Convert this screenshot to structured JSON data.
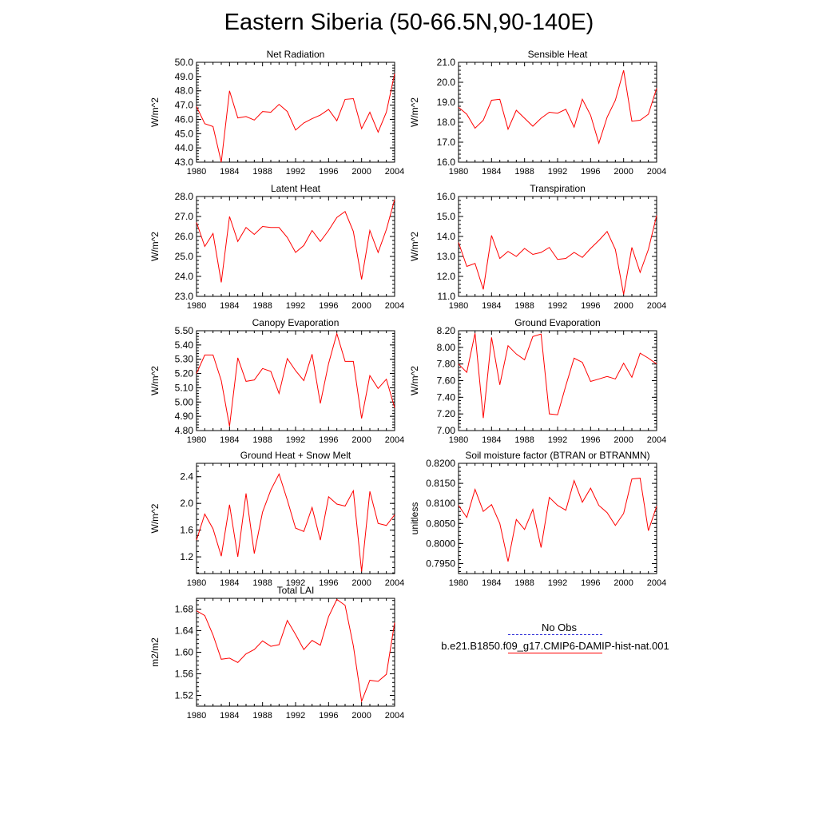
{
  "title": "Eastern Siberia (50-66.5N,90-140E)",
  "legend": {
    "obs_label": "No Obs",
    "model_label": "b.e21.B1850.f09_g17.CMIP6-DAMIP-hist-nat.001",
    "obs_color": "#2b2bd6",
    "model_color": "#ff0000"
  },
  "chart_data": [
    {
      "type": "line",
      "title": "Net Radiation",
      "ylabel": "W/m^2",
      "xlim": [
        1980,
        2004
      ],
      "ylim": [
        43.0,
        50.0
      ],
      "xticks": [
        1980,
        1984,
        1988,
        1992,
        1996,
        2000,
        2004
      ],
      "xtick_labels": [
        "1980",
        "1984",
        "1988",
        "1992",
        "1996",
        "2000",
        "2004"
      ],
      "yticks": [
        43.0,
        44.0,
        45.0,
        46.0,
        47.0,
        48.0,
        49.0,
        50.0
      ],
      "ytick_labels": [
        "43.0",
        "44.0",
        "45.0",
        "46.0",
        "47.0",
        "48.0",
        "49.0",
        "50.0"
      ],
      "x": [
        1980,
        1981,
        1982,
        1983,
        1984,
        1985,
        1986,
        1987,
        1988,
        1989,
        1990,
        1991,
        1992,
        1993,
        1994,
        1995,
        1996,
        1997,
        1998,
        1999,
        2000,
        2001,
        2002,
        2003,
        2004
      ],
      "series": [
        {
          "color": "#ff0000",
          "values": [
            46.9,
            45.7,
            45.5,
            43.0,
            48.0,
            46.1,
            46.2,
            45.95,
            46.55,
            46.5,
            47.05,
            46.55,
            45.25,
            45.75,
            46.05,
            46.3,
            46.7,
            45.9,
            47.4,
            47.45,
            45.35,
            46.5,
            45.1,
            46.5,
            49.2
          ]
        }
      ]
    },
    {
      "type": "line",
      "title": "Sensible Heat",
      "ylabel": "W/m^2",
      "xlim": [
        1980,
        2004
      ],
      "ylim": [
        16.0,
        21.0
      ],
      "xticks": [
        1980,
        1984,
        1988,
        1992,
        1996,
        2000,
        2004
      ],
      "xtick_labels": [
        "1980",
        "1984",
        "1988",
        "1992",
        "1996",
        "2000",
        "2004"
      ],
      "yticks": [
        16.0,
        17.0,
        18.0,
        19.0,
        20.0,
        21.0
      ],
      "ytick_labels": [
        "16.0",
        "17.0",
        "18.0",
        "19.0",
        "20.0",
        "21.0"
      ],
      "x": [
        1980,
        1981,
        1982,
        1983,
        1984,
        1985,
        1986,
        1987,
        1988,
        1989,
        1990,
        1991,
        1992,
        1993,
        1994,
        1995,
        1996,
        1997,
        1998,
        1999,
        2000,
        2001,
        2002,
        2003,
        2004
      ],
      "series": [
        {
          "color": "#ff0000",
          "values": [
            18.75,
            18.4,
            17.7,
            18.1,
            19.1,
            19.15,
            17.65,
            18.6,
            18.2,
            17.8,
            18.2,
            18.5,
            18.45,
            18.65,
            17.75,
            19.15,
            18.35,
            16.95,
            18.25,
            19.1,
            20.6,
            18.05,
            18.1,
            18.4,
            19.7
          ]
        }
      ]
    },
    {
      "type": "line",
      "title": "Latent Heat",
      "ylabel": "W/m^2",
      "xlim": [
        1980,
        2004
      ],
      "ylim": [
        23.0,
        28.0
      ],
      "xticks": [
        1980,
        1984,
        1988,
        1992,
        1996,
        2000,
        2004
      ],
      "xtick_labels": [
        "1980",
        "1984",
        "1988",
        "1992",
        "1996",
        "2000",
        "2004"
      ],
      "yticks": [
        23.0,
        24.0,
        25.0,
        26.0,
        27.0,
        28.0
      ],
      "ytick_labels": [
        "23.0",
        "24.0",
        "25.0",
        "26.0",
        "27.0",
        "28.0"
      ],
      "x": [
        1980,
        1981,
        1982,
        1983,
        1984,
        1985,
        1986,
        1987,
        1988,
        1989,
        1990,
        1991,
        1992,
        1993,
        1994,
        1995,
        1996,
        1997,
        1998,
        1999,
        2000,
        2001,
        2002,
        2003,
        2004
      ],
      "series": [
        {
          "color": "#ff0000",
          "values": [
            26.7,
            25.5,
            26.15,
            23.7,
            27.0,
            25.75,
            26.45,
            26.1,
            26.5,
            26.45,
            26.45,
            25.95,
            25.2,
            25.55,
            26.3,
            25.75,
            26.3,
            26.95,
            27.25,
            26.25,
            23.85,
            26.3,
            25.2,
            26.35,
            27.85
          ]
        }
      ]
    },
    {
      "type": "line",
      "title": "Transpiration",
      "ylabel": "W/m^2",
      "xlim": [
        1980,
        2004
      ],
      "ylim": [
        11.0,
        16.0
      ],
      "xticks": [
        1980,
        1984,
        1988,
        1992,
        1996,
        2000,
        2004
      ],
      "xtick_labels": [
        "1980",
        "1984",
        "1988",
        "1992",
        "1996",
        "2000",
        "2004"
      ],
      "yticks": [
        11.0,
        12.0,
        13.0,
        14.0,
        15.0,
        16.0
      ],
      "ytick_labels": [
        "11.0",
        "12.0",
        "13.0",
        "14.0",
        "15.0",
        "16.0"
      ],
      "x": [
        1980,
        1981,
        1982,
        1983,
        1984,
        1985,
        1986,
        1987,
        1988,
        1989,
        1990,
        1991,
        1992,
        1993,
        1994,
        1995,
        1996,
        1997,
        1998,
        1999,
        2000,
        2001,
        2002,
        2003,
        2004
      ],
      "series": [
        {
          "color": "#ff0000",
          "values": [
            13.7,
            12.5,
            12.65,
            11.35,
            14.05,
            12.9,
            13.25,
            13.0,
            13.4,
            13.1,
            13.2,
            13.45,
            12.85,
            12.9,
            13.2,
            12.95,
            13.4,
            13.8,
            14.25,
            13.35,
            11.1,
            13.45,
            12.2,
            13.35,
            15.05
          ]
        }
      ]
    },
    {
      "type": "line",
      "title": "Canopy Evaporation",
      "ylabel": "W/m^2",
      "xlim": [
        1980,
        2004
      ],
      "ylim": [
        4.8,
        5.5
      ],
      "xticks": [
        1980,
        1984,
        1988,
        1992,
        1996,
        2000,
        2004
      ],
      "xtick_labels": [
        "1980",
        "1984",
        "1988",
        "1992",
        "1996",
        "2000",
        "2004"
      ],
      "yticks": [
        4.8,
        4.9,
        5.0,
        5.1,
        5.2,
        5.3,
        5.4,
        5.5
      ],
      "ytick_labels": [
        "4.80",
        "4.90",
        "5.00",
        "5.10",
        "5.20",
        "5.30",
        "5.40",
        "5.50"
      ],
      "x": [
        1980,
        1981,
        1982,
        1983,
        1984,
        1985,
        1986,
        1987,
        1988,
        1989,
        1990,
        1991,
        1992,
        1993,
        1994,
        1995,
        1996,
        1997,
        1998,
        1999,
        2000,
        2001,
        2002,
        2003,
        2004
      ],
      "series": [
        {
          "color": "#ff0000",
          "values": [
            5.2,
            5.33,
            5.33,
            5.15,
            4.83,
            5.31,
            5.145,
            5.155,
            5.235,
            5.215,
            5.06,
            5.305,
            5.22,
            5.15,
            5.335,
            4.99,
            5.27,
            5.48,
            5.285,
            5.285,
            4.885,
            5.185,
            5.095,
            5.16,
            4.96
          ]
        }
      ]
    },
    {
      "type": "line",
      "title": "Ground Evaporation",
      "ylabel": "W/m^2",
      "xlim": [
        1980,
        2004
      ],
      "ylim": [
        7.0,
        8.2
      ],
      "xticks": [
        1980,
        1984,
        1988,
        1992,
        1996,
        2000,
        2004
      ],
      "xtick_labels": [
        "1980",
        "1984",
        "1988",
        "1992",
        "1996",
        "2000",
        "2004"
      ],
      "yticks": [
        7.0,
        7.2,
        7.4,
        7.6,
        7.8,
        8.0,
        8.2
      ],
      "ytick_labels": [
        "7.00",
        "7.20",
        "7.40",
        "7.60",
        "7.80",
        "8.00",
        "8.20"
      ],
      "x": [
        1980,
        1981,
        1982,
        1983,
        1984,
        1985,
        1986,
        1987,
        1988,
        1989,
        1990,
        1991,
        1992,
        1993,
        1994,
        1995,
        1996,
        1997,
        1998,
        1999,
        2000,
        2001,
        2002,
        2003,
        2004
      ],
      "series": [
        {
          "color": "#ff0000",
          "values": [
            7.8,
            7.7,
            8.17,
            7.15,
            8.12,
            7.55,
            8.02,
            7.92,
            7.85,
            8.13,
            8.16,
            7.2,
            7.19,
            7.54,
            7.87,
            7.82,
            7.59,
            7.62,
            7.65,
            7.62,
            7.81,
            7.64,
            7.93,
            7.87,
            7.8
          ]
        }
      ]
    },
    {
      "type": "line",
      "title": "Ground Heat + Snow Melt",
      "ylabel": "W/m^2",
      "xlim": [
        1980,
        2004
      ],
      "ylim": [
        0.95,
        2.6
      ],
      "xticks": [
        1980,
        1984,
        1988,
        1992,
        1996,
        2000,
        2004
      ],
      "xtick_labels": [
        "1980",
        "1984",
        "1988",
        "1992",
        "1996",
        "2000",
        "2004"
      ],
      "yticks": [
        1.2,
        1.6,
        2.0,
        2.4
      ],
      "ytick_labels": [
        "1.2",
        "1.6",
        "2.0",
        "2.4"
      ],
      "x": [
        1980,
        1981,
        1982,
        1983,
        1984,
        1985,
        1986,
        1987,
        1988,
        1989,
        1990,
        1991,
        1992,
        1993,
        1994,
        1995,
        1996,
        1997,
        1998,
        1999,
        2000,
        2001,
        2002,
        2003,
        2004
      ],
      "series": [
        {
          "color": "#ff0000",
          "values": [
            1.45,
            1.84,
            1.62,
            1.21,
            1.98,
            1.2,
            2.15,
            1.25,
            1.87,
            2.2,
            2.44,
            2.05,
            1.63,
            1.58,
            1.94,
            1.45,
            2.1,
            1.99,
            1.96,
            2.19,
            0.98,
            2.18,
            1.7,
            1.67,
            1.83
          ]
        }
      ]
    },
    {
      "type": "line",
      "title": "Soil moisture factor (BTRAN or BTRANMN)",
      "ylabel": "unitless",
      "xlim": [
        1980,
        2004
      ],
      "ylim": [
        0.7925,
        0.82
      ],
      "xticks": [
        1980,
        1984,
        1988,
        1992,
        1996,
        2000,
        2004
      ],
      "xtick_labels": [
        "1980",
        "1984",
        "1988",
        "1992",
        "1996",
        "2000",
        "2004"
      ],
      "yticks": [
        0.795,
        0.8,
        0.805,
        0.81,
        0.815,
        0.82
      ],
      "ytick_labels": [
        "0.7950",
        "0.8000",
        "0.8050",
        "0.8100",
        "0.8150",
        "0.8200"
      ],
      "x": [
        1980,
        1981,
        1982,
        1983,
        1984,
        1985,
        1986,
        1987,
        1988,
        1989,
        1990,
        1991,
        1992,
        1993,
        1994,
        1995,
        1996,
        1997,
        1998,
        1999,
        2000,
        2001,
        2002,
        2003,
        2004
      ],
      "series": [
        {
          "color": "#ff0000",
          "values": [
            0.8095,
            0.8065,
            0.8135,
            0.808,
            0.8097,
            0.805,
            0.7955,
            0.806,
            0.8035,
            0.8085,
            0.799,
            0.8115,
            0.8095,
            0.8083,
            0.8157,
            0.8103,
            0.8138,
            0.8095,
            0.8077,
            0.8045,
            0.8075,
            0.8161,
            0.8163,
            0.8032,
            0.8093
          ]
        }
      ]
    },
    {
      "type": "line",
      "title": "Total LAI",
      "ylabel": "m2/m2",
      "xlim": [
        1980,
        2004
      ],
      "ylim": [
        1.5,
        1.7
      ],
      "xticks": [
        1980,
        1984,
        1988,
        1992,
        1996,
        2000,
        2004
      ],
      "xtick_labels": [
        "1980",
        "1984",
        "1988",
        "1992",
        "1996",
        "2000",
        "2004"
      ],
      "yticks": [
        1.52,
        1.56,
        1.6,
        1.64,
        1.68
      ],
      "ytick_labels": [
        "1.52",
        "1.56",
        "1.60",
        "1.64",
        "1.68"
      ],
      "x": [
        1980,
        1981,
        1982,
        1983,
        1984,
        1985,
        1986,
        1987,
        1988,
        1989,
        1990,
        1991,
        1992,
        1993,
        1994,
        1995,
        1996,
        1997,
        1998,
        1999,
        2000,
        2001,
        2002,
        2003,
        2004
      ],
      "series": [
        {
          "color": "#ff0000",
          "values": [
            1.677,
            1.668,
            1.632,
            1.587,
            1.589,
            1.581,
            1.597,
            1.605,
            1.621,
            1.611,
            1.614,
            1.659,
            1.633,
            1.605,
            1.622,
            1.613,
            1.666,
            1.698,
            1.687,
            1.612,
            1.509,
            1.548,
            1.546,
            1.559,
            1.655
          ]
        }
      ]
    }
  ]
}
